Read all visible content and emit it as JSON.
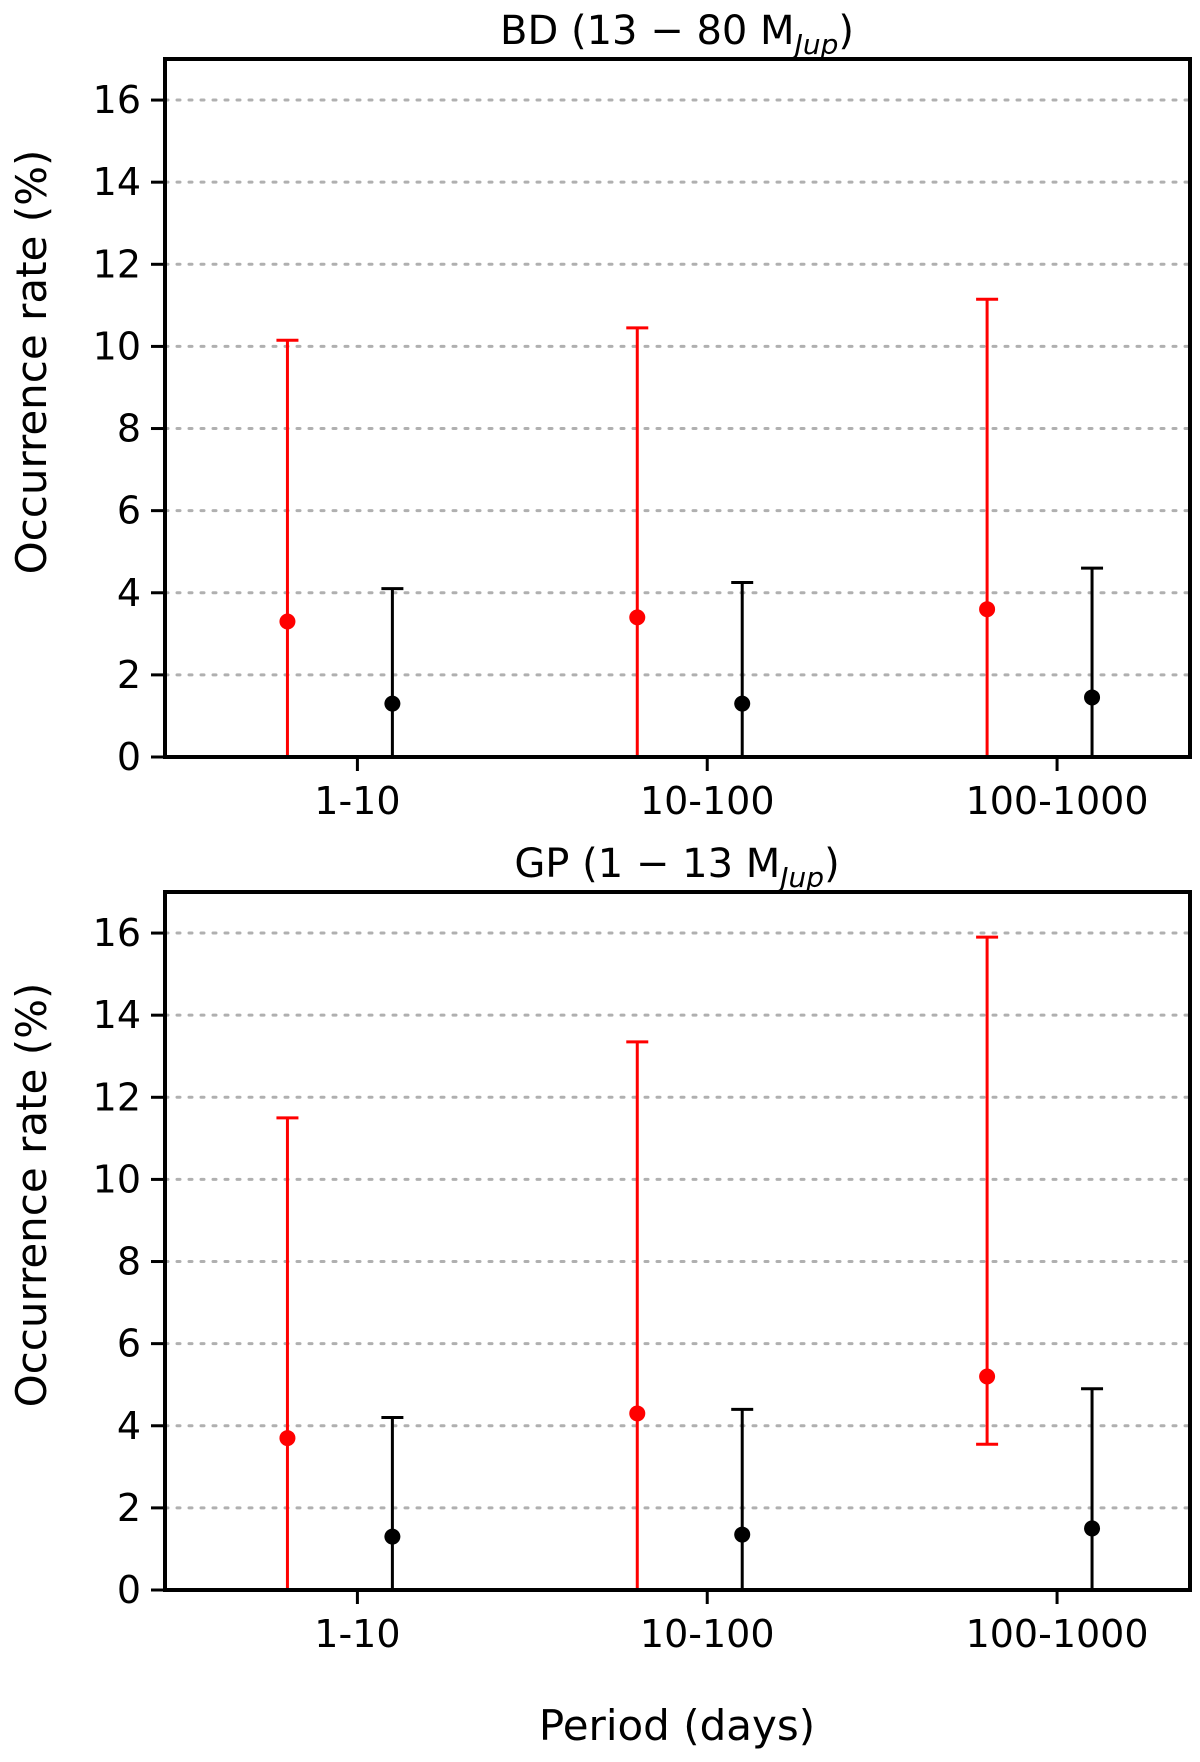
{
  "figure": {
    "xlabel": "Period (days)"
  },
  "chart_data": [
    {
      "type": "scatter",
      "title": "BD (13 − 80 M",
      "title_sub": "Jup",
      "title_close": ")",
      "ylabel": "Occurrence rate (%)",
      "xlabel": "",
      "categories": [
        "1-10",
        "10-100",
        "100-1000"
      ],
      "ylim": [
        0,
        17
      ],
      "yticks": [
        0,
        2,
        4,
        6,
        8,
        10,
        12,
        14,
        16
      ],
      "grid": true,
      "series": [
        {
          "name": "red",
          "color": "#ff0000",
          "offset": -0.2,
          "values": [
            3.3,
            3.4,
            3.6
          ],
          "err_low": [
            0,
            0,
            0
          ],
          "err_high": [
            10.15,
            10.45,
            11.15
          ]
        },
        {
          "name": "black",
          "color": "#000000",
          "offset": 0.1,
          "values": [
            1.3,
            1.3,
            1.45
          ],
          "err_low": [
            0,
            0,
            0
          ],
          "err_high": [
            4.1,
            4.25,
            4.6
          ]
        }
      ]
    },
    {
      "type": "scatter",
      "title": "GP (1 − 13 M",
      "title_sub": "Jup",
      "title_close": ")",
      "ylabel": "Occurrence rate (%)",
      "xlabel": "Period (days)",
      "categories": [
        "1-10",
        "10-100",
        "100-1000"
      ],
      "ylim": [
        0,
        17
      ],
      "yticks": [
        0,
        2,
        4,
        6,
        8,
        10,
        12,
        14,
        16
      ],
      "grid": true,
      "series": [
        {
          "name": "red",
          "color": "#ff0000",
          "offset": -0.2,
          "values": [
            3.7,
            4.3,
            5.2
          ],
          "err_low": [
            0,
            0,
            3.55
          ],
          "err_high": [
            11.5,
            13.35,
            15.9
          ]
        },
        {
          "name": "black",
          "color": "#000000",
          "offset": 0.1,
          "values": [
            1.3,
            1.35,
            1.5
          ],
          "err_low": [
            0,
            0,
            0
          ],
          "err_high": [
            4.2,
            4.4,
            4.9
          ]
        }
      ]
    }
  ]
}
